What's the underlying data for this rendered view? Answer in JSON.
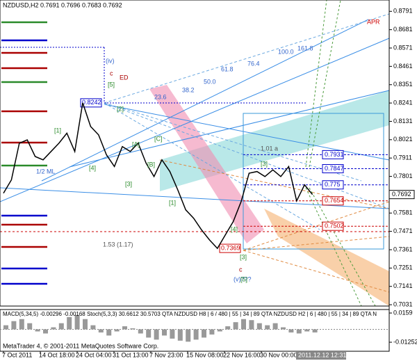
{
  "chart_data": {
    "type": "line",
    "title": "NZDUSD,H2  0.7691 0.7696 0.7683 0.7692",
    "series": [
      {
        "name": "NZDUSD",
        "color": "#000000",
        "values": [
          0.77,
          0.778,
          0.8,
          0.802,
          0.792,
          0.79,
          0.795,
          0.8,
          0.806,
          0.795,
          0.8242,
          0.81,
          0.805,
          0.793,
          0.786,
          0.798,
          0.795,
          0.8,
          0.788,
          0.78,
          0.79,
          0.783,
          0.772,
          0.76,
          0.755,
          0.748,
          0.742,
          0.7369,
          0.745,
          0.753,
          0.765,
          0.782,
          0.783,
          0.78,
          0.784,
          0.78,
          0.786,
          0.7654,
          0.775,
          0.7692
        ]
      }
    ],
    "current_price": 0.7692,
    "ylim": [
      0.7023,
      0.8859
    ],
    "yticks": [
      0.8791,
      0.8681,
      0.8571,
      0.8461,
      0.8351,
      0.8241,
      0.8131,
      0.8021,
      0.7911,
      0.7801,
      0.7581,
      0.7471,
      0.7361,
      0.7251,
      0.7141,
      0.7031
    ],
    "x_labels": [
      "7 Oct 2011",
      "14 Oct 18:00",
      "24 Oct 04:00",
      "31 Oct 13:00",
      "7 Nov 23:00",
      "15 Nov 08:00",
      "22 Nov 16:00",
      "30 Nov 00:00"
    ],
    "cursor_label": "2011.12.12 12:31",
    "levels": [
      0.7931,
      0.7847,
      0.775,
      0.7654,
      0.7502
    ],
    "extreme_labels": [
      0.8242,
      0.7369
    ],
    "annotations": [
      "ED",
      "(iv)",
      "c",
      "(v)???",
      "c",
      "1/2 ML",
      "1.53 (1.17)",
      "61.8",
      "50.0",
      "38.2",
      "23.6",
      "100.0",
      "76.4",
      "161.8",
      "APR",
      "[1]",
      "[2]",
      "[3]",
      "[4]",
      "[5]",
      "[A]",
      "[B]",
      "[C]",
      "[1]",
      "[3]",
      "[5]",
      "[3]",
      "[4]",
      "1.01 a"
    ],
    "indicator": {
      "title": "MACD(5,34,5) -0.00296 -0.00168  Stoch(5,3,3) 30.6612 30.5703  QTA NZDUSD H8 | 6 / 480 | 55 | 34 | 89    QTA NZDUSD H2 | 6 | 480 | 55 | 34 | 89  QTA N",
      "values": [
        0.004,
        0.008,
        0.01,
        0.006,
        -0.002,
        -0.004,
        0.002,
        0.006,
        0.012,
        0.014,
        0.01,
        0.004,
        -0.003,
        -0.006,
        -0.002,
        0.003,
        0.001,
        -0.004,
        -0.008,
        -0.01,
        -0.006,
        -0.009,
        -0.011,
        -0.012,
        -0.01,
        -0.008,
        -0.005,
        -0.002,
        0.003,
        0.007,
        0.01,
        0.009,
        0.006,
        0.004,
        0.006,
        0.002,
        -0.003,
        -0.004,
        -0.002,
        -0.003
      ],
      "ylim": [
        -0.0213,
        0.0193
      ],
      "yticks": [
        0.0159,
        -0.01252
      ]
    },
    "footer": "MetaTrader 4, © 2001-2011 MetaQuotes Software Corp."
  }
}
